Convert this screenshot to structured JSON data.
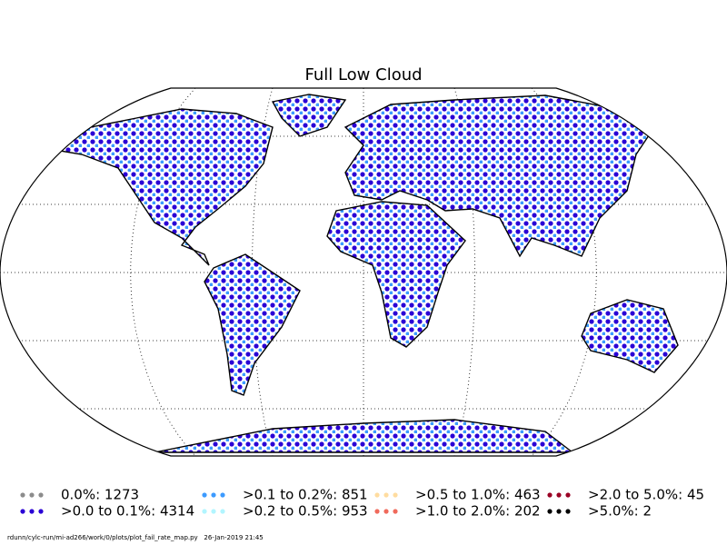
{
  "title": "Full Low Cloud",
  "legend": [
    {
      "label": "0.0%: 1273",
      "color": "#8c8c8c"
    },
    {
      "label": ">0.0 to 0.1%: 4314",
      "color": "#2a00d5"
    },
    {
      "label": ">0.1 to 0.2%: 851",
      "color": "#3d9bff"
    },
    {
      "label": ">0.2 to 0.5%: 953",
      "color": "#b2f5ff"
    },
    {
      "label": ">0.5 to 1.0%: 463",
      "color": "#ffdca0"
    },
    {
      "label": ">1.0 to 2.0%: 202",
      "color": "#f06a5c"
    },
    {
      "label": ">2.0 to 5.0%: 45",
      "color": "#9a0024"
    },
    {
      "label": ">5.0%: 2",
      "color": "#000000"
    }
  ],
  "footer": "rdunn/cylc-run/mi-ad266/work/0/plots/plot_fail_rate_map.py   26-Jan-2019 21:45"
}
